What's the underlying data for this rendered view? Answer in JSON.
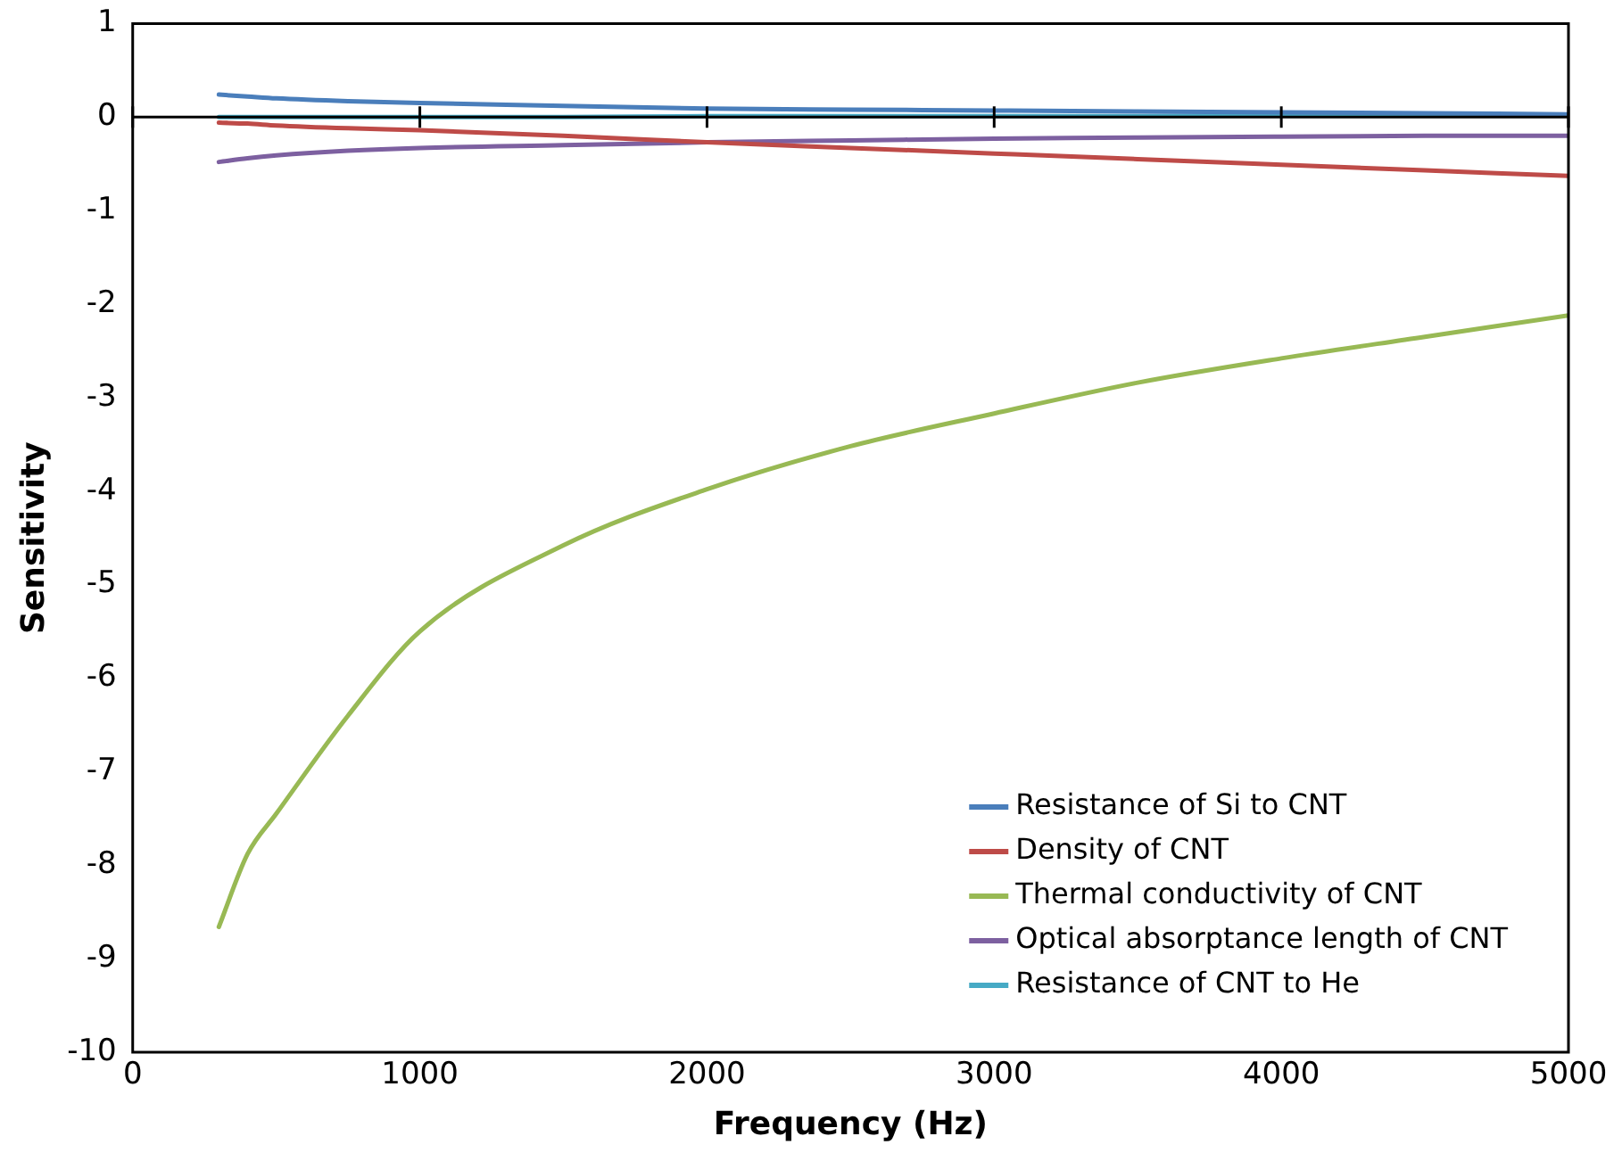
{
  "chart_data": {
    "type": "line",
    "xlabel": "Frequency (Hz)",
    "ylabel": "Sensitivity",
    "x": [
      300,
      400,
      500,
      750,
      1000,
      1500,
      2000,
      2500,
      3000,
      3500,
      4000,
      4500,
      5000
    ],
    "series": [
      {
        "name": "Resistance of Si to CNT",
        "color": "#4a7ebb",
        "values": [
          0.24,
          0.22,
          0.2,
          0.17,
          0.15,
          0.12,
          0.09,
          0.08,
          0.07,
          0.06,
          0.05,
          0.04,
          0.03
        ]
      },
      {
        "name": "Density of CNT",
        "color": "#be4b48",
        "values": [
          -0.06,
          -0.07,
          -0.09,
          -0.12,
          -0.14,
          -0.2,
          -0.27,
          -0.33,
          -0.39,
          -0.45,
          -0.51,
          -0.57,
          -0.63
        ]
      },
      {
        "name": "Thermal conductivity of CNT",
        "color": "#98b954",
        "values": [
          -8.66,
          -7.88,
          -7.45,
          -6.4,
          -5.5,
          -4.58,
          -3.98,
          -3.52,
          -3.17,
          -2.84,
          -2.58,
          -2.35,
          -2.12
        ]
      },
      {
        "name": "Optical absorptance length of CNT",
        "color": "#7d60a0",
        "values": [
          -0.48,
          -0.44,
          -0.41,
          -0.36,
          -0.33,
          -0.3,
          -0.27,
          -0.25,
          -0.23,
          -0.22,
          -0.21,
          -0.2,
          -0.2
        ]
      },
      {
        "name": "Resistance of CNT to He",
        "color": "#46aac5",
        "values": [
          0,
          0,
          0,
          0,
          0,
          0,
          0.01,
          0.01,
          0.01,
          0.01,
          0.02,
          0.02,
          0.02
        ]
      }
    ],
    "xlim": [
      0,
      5000
    ],
    "xticks": [
      0,
      1000,
      2000,
      3000,
      4000,
      5000
    ],
    "ylim": [
      -10,
      1
    ],
    "yticks": [
      -10,
      -9,
      -8,
      -7,
      -6,
      -5,
      -4,
      -3,
      -2,
      -1,
      0,
      1
    ],
    "ref_lines": [
      {
        "axis": "y",
        "value": 0,
        "color": "#000000"
      }
    ],
    "grid": false,
    "legend": "bottom right",
    "marker": "none",
    "line_style": "solid"
  }
}
